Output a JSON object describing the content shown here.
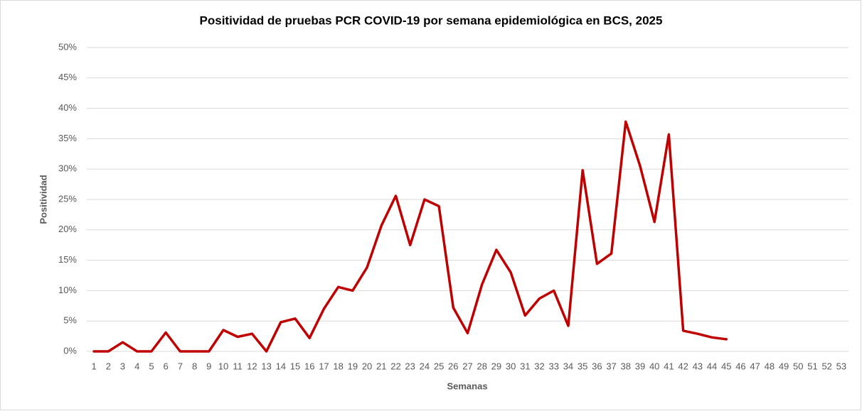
{
  "chart_data": {
    "type": "line",
    "title": "Positividad de pruebas PCR COVID-19 por semana epidemiológica en BCS, 2025",
    "x_label": "Semanas",
    "y_label": "Positividad",
    "categories": [
      "1",
      "2",
      "3",
      "4",
      "5",
      "6",
      "7",
      "8",
      "9",
      "10",
      "11",
      "12",
      "13",
      "14",
      "15",
      "16",
      "17",
      "18",
      "19",
      "20",
      "21",
      "22",
      "23",
      "24",
      "25",
      "26",
      "27",
      "28",
      "29",
      "30",
      "31",
      "32",
      "33",
      "34",
      "35",
      "36",
      "37",
      "38",
      "39",
      "40",
      "41",
      "42",
      "43",
      "44",
      "45",
      "46",
      "47",
      "48",
      "49",
      "50",
      "51",
      "52",
      "53"
    ],
    "series": [
      {
        "name": "Positividad",
        "color": "#c00000",
        "values": [
          0,
          0,
          1.5,
          0,
          0,
          3.1,
          0,
          0,
          0,
          3.5,
          2.4,
          2.9,
          0,
          4.8,
          5.4,
          2.2,
          7.0,
          10.6,
          10.0,
          13.8,
          20.7,
          25.6,
          17.5,
          25.0,
          23.9,
          7.2,
          3.0,
          11.0,
          16.7,
          13.0,
          5.9,
          8.7,
          10.0,
          4.2,
          29.8,
          14.4,
          16.1,
          37.8,
          30.5,
          21.3,
          35.7,
          3.4,
          2.9,
          2.3,
          2.0,
          null,
          null,
          null,
          null,
          null,
          null,
          null,
          null
        ]
      }
    ],
    "ylim": [
      0,
      50
    ],
    "yticks": [
      {
        "value": 0,
        "label": "0%"
      },
      {
        "value": 5,
        "label": "5%"
      },
      {
        "value": 10,
        "label": "10%"
      },
      {
        "value": 15,
        "label": "15%"
      },
      {
        "value": 20,
        "label": "20%"
      },
      {
        "value": 25,
        "label": "25%"
      },
      {
        "value": 30,
        "label": "30%"
      },
      {
        "value": 35,
        "label": "35%"
      },
      {
        "value": 40,
        "label": "40%"
      },
      {
        "value": 45,
        "label": "45%"
      },
      {
        "value": 50,
        "label": "50%"
      }
    ],
    "grid": true
  }
}
